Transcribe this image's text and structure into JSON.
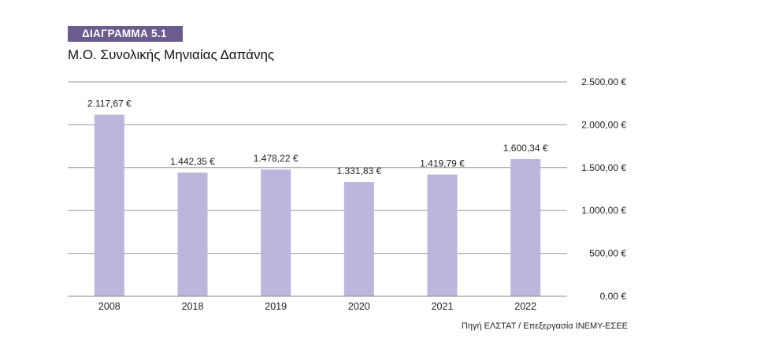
{
  "figure": {
    "badge": "ΔΙΑΓΡΑΜΜΑ 5.1",
    "title": "Μ.Ο. Συνολικής Μηνιαίας Δαπάνης",
    "source": "Πηγή ΕΛΣΤΑΤ / Επεξεργασία ΙΝΕΜΥ-ΕΣΕΕ"
  },
  "chart_data": {
    "type": "bar",
    "title": "Μ.Ο. Συνολικής Μηνιαίας Δαπάνης",
    "categories": [
      "2008",
      "2018",
      "2019",
      "2020",
      "2021",
      "2022"
    ],
    "values": [
      2117.67,
      1442.35,
      1478.22,
      1331.83,
      1419.79,
      1600.34
    ],
    "value_labels": [
      "2.117,67 €",
      "1.442,35 €",
      "1.478,22 €",
      "1.331,83 €",
      "1.419,79 €",
      "1.600,34 €"
    ],
    "ylim": [
      0,
      2500
    ],
    "yticks": [
      0,
      500,
      1000,
      1500,
      2000,
      2500
    ],
    "ytick_labels": [
      "0,00 €",
      "500,00 €",
      "1.000,00 €",
      "1.500,00 €",
      "2.000,00 €",
      "2.500,00 €"
    ],
    "y_axis_side": "right",
    "grid": true,
    "bar_color": "#bbb6dc",
    "grid_color": "#9a9a9a",
    "legend": false
  }
}
